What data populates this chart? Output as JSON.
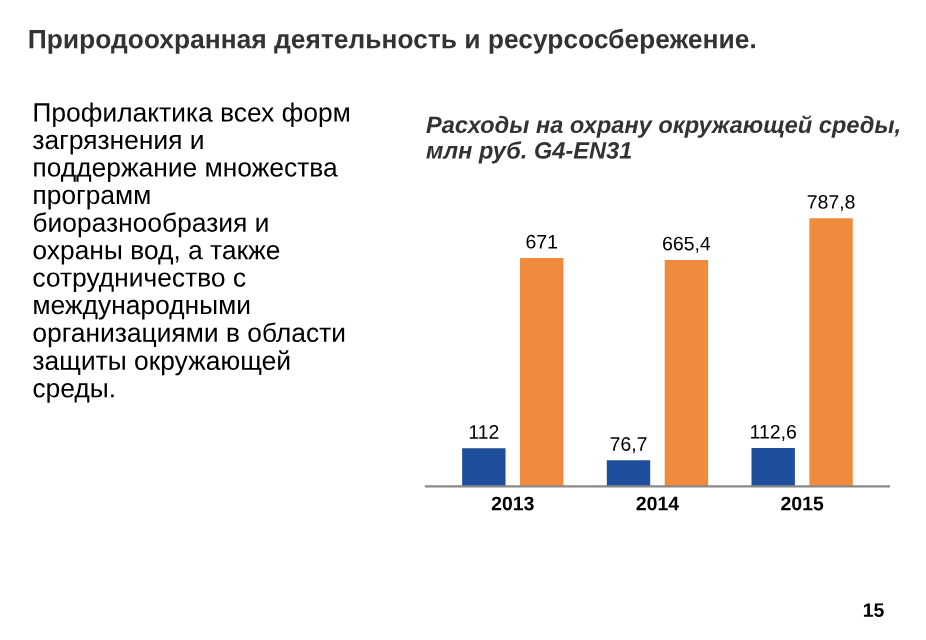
{
  "chart_data": {
    "type": "bar",
    "title": "Природоохранная деятельность и ресурсосбережение.",
    "subtitle": "Расходы на охрану окружающей среды,\nмлн руб. G4-EN31",
    "categories": [
      "2013",
      "2014",
      "2015"
    ],
    "series": [
      {
        "color": "#1f4e9c",
        "values": [
          112,
          76.7,
          112.6
        ],
        "value_labels": [
          "112",
          "76,7",
          "112,6"
        ]
      },
      {
        "color": "#f08a3c",
        "values": [
          671,
          665.4,
          787.8
        ],
        "value_labels": [
          "671",
          "665,4",
          "787,8"
        ]
      }
    ],
    "annotations": [
      "Профилактика всех форм\nзагрязнения и\nподдержание множества\nпрограмм\nбиоразнообразия и\nохраны вод, а также\nсотрудничество с\nмеждународными\nорганизациями в области\nзащиты окружающей\nсреды.",
      "15"
    ]
  }
}
